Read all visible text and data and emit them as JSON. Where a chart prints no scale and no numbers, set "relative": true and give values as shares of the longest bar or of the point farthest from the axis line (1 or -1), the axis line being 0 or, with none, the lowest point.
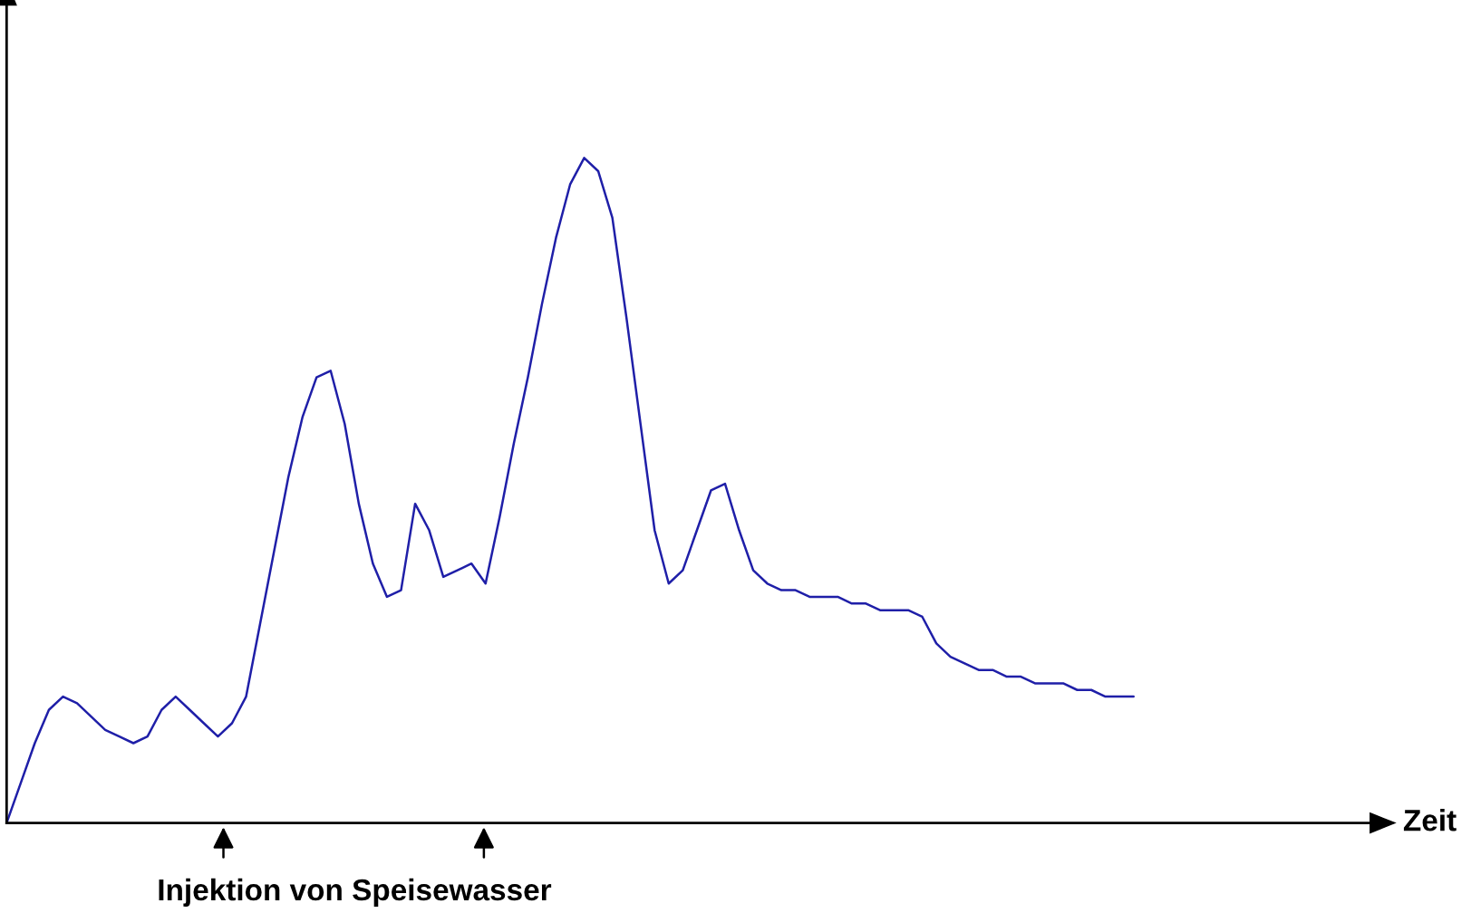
{
  "chart_data": {
    "type": "line",
    "relative": true,
    "annotations": [
      "Zeit",
      "Injektion von Speisewasser"
    ],
    "categories": [
      null,
      null,
      null,
      null,
      null,
      null,
      null,
      null,
      null,
      null,
      null,
      null,
      null,
      null,
      null,
      null,
      null,
      null,
      null,
      null,
      null,
      null,
      null,
      null,
      null,
      null,
      null,
      null,
      null,
      null,
      null,
      null,
      null,
      null,
      null,
      null,
      null,
      null,
      null,
      null,
      null,
      null,
      null,
      null,
      null,
      null,
      null,
      null,
      null,
      null,
      null,
      null,
      null,
      null,
      null,
      null,
      null,
      null,
      null,
      null,
      null,
      null,
      null,
      null,
      null,
      null,
      null,
      null,
      null,
      null,
      null,
      null,
      null,
      null,
      null,
      null,
      null,
      null,
      null,
      null,
      null
    ],
    "series": [
      {
        "color": "#1f1fa8",
        "values": [
          0,
          0.06,
          0.12,
          0.17,
          0.19,
          0.18,
          0.16,
          0.14,
          0.13,
          0.12,
          0.13,
          0.17,
          0.19,
          0.17,
          0.15,
          0.13,
          0.15,
          0.19,
          0.3,
          0.41,
          0.52,
          0.61,
          0.67,
          0.68,
          0.6,
          0.48,
          0.39,
          0.34,
          0.35,
          0.48,
          0.44,
          0.37,
          0.38,
          0.39,
          0.36,
          0.46,
          0.57,
          0.67,
          0.78,
          0.88,
          0.96,
          1.0,
          0.98,
          0.91,
          0.76,
          0.6,
          0.44,
          0.36,
          0.38,
          0.44,
          0.5,
          0.51,
          0.44,
          0.38,
          0.36,
          0.35,
          0.35,
          0.34,
          0.34,
          0.34,
          0.33,
          0.33,
          0.32,
          0.32,
          0.32,
          0.31,
          0.27,
          0.25,
          0.24,
          0.23,
          0.23,
          0.22,
          0.22,
          0.21,
          0.21,
          0.21,
          0.2,
          0.2,
          0.19,
          0.19,
          0.19
        ]
      }
    ],
    "grid": false,
    "legend": false
  }
}
